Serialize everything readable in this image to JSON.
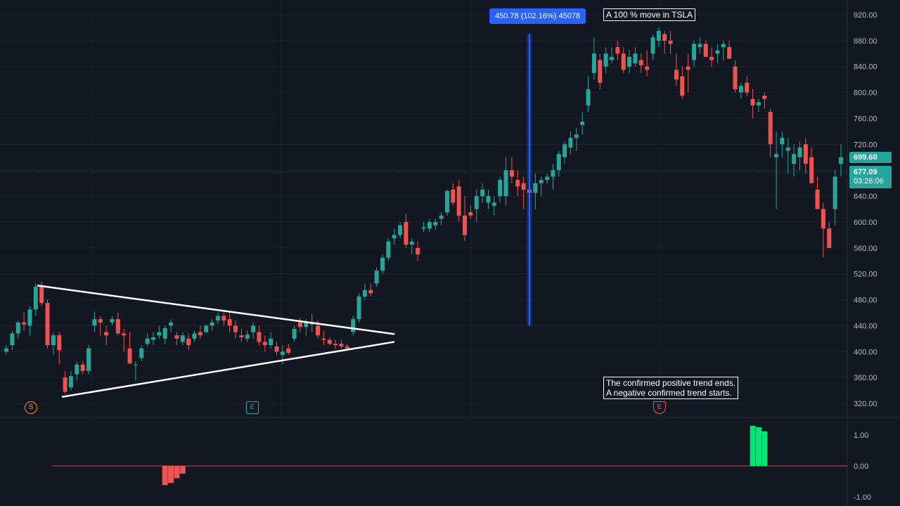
{
  "chart_data": [
    {
      "type": "candlestick",
      "title": "",
      "price_axis": {
        "ticks": [
          "920.00",
          "880.00",
          "840.00",
          "800.00",
          "760.00",
          "720.00",
          "680.00",
          "640.00",
          "600.00",
          "560.00",
          "520.00",
          "480.00",
          "440.00",
          "400.00",
          "360.00",
          "320.00"
        ],
        "ylim": [
          300,
          935
        ]
      },
      "ohlc": [
        [
          400,
          410,
          396,
          405
        ],
        [
          410,
          432,
          402,
          428
        ],
        [
          428,
          448,
          420,
          445
        ],
        [
          445,
          460,
          432,
          442
        ],
        [
          440,
          470,
          425,
          465
        ],
        [
          465,
          505,
          455,
          500
        ],
        [
          500,
          508,
          470,
          475
        ],
        [
          475,
          480,
          405,
          410
        ],
        [
          410,
          430,
          395,
          425
        ],
        [
          425,
          430,
          380,
          402
        ],
        [
          360,
          370,
          335,
          338
        ],
        [
          345,
          370,
          340,
          362
        ],
        [
          365,
          385,
          355,
          380
        ],
        [
          380,
          385,
          365,
          370
        ],
        [
          370,
          410,
          365,
          405
        ],
        [
          440,
          462,
          430,
          450
        ],
        [
          450,
          455,
          425,
          445
        ],
        [
          430,
          440,
          410,
          425
        ],
        [
          445,
          455,
          440,
          450
        ],
        [
          450,
          460,
          425,
          428
        ],
        [
          428,
          435,
          400,
          425
        ],
        [
          405,
          430,
          380,
          382
        ],
        [
          380,
          385,
          355,
          380
        ],
        [
          390,
          410,
          385,
          405
        ],
        [
          412,
          428,
          408,
          420
        ],
        [
          418,
          430,
          410,
          422
        ],
        [
          425,
          440,
          420,
          430
        ],
        [
          420,
          440,
          412,
          436
        ],
        [
          440,
          450,
          430,
          445
        ],
        [
          425,
          430,
          410,
          420
        ],
        [
          415,
          430,
          410,
          425
        ],
        [
          420,
          428,
          402,
          410
        ],
        [
          420,
          432,
          415,
          428
        ],
        [
          430,
          440,
          420,
          425
        ],
        [
          430,
          442,
          428,
          440
        ],
        [
          440,
          450,
          432,
          445
        ],
        [
          448,
          460,
          442,
          455
        ],
        [
          455,
          460,
          440,
          448
        ],
        [
          450,
          460,
          430,
          440
        ],
        [
          440,
          448,
          420,
          430
        ],
        [
          425,
          435,
          415,
          422
        ],
        [
          420,
          432,
          415,
          426
        ],
        [
          430,
          445,
          420,
          440
        ],
        [
          430,
          440,
          410,
          415
        ],
        [
          415,
          425,
          400,
          410
        ],
        [
          410,
          430,
          405,
          420
        ],
        [
          408,
          415,
          395,
          400
        ],
        [
          395,
          410,
          380,
          400
        ],
        [
          405,
          412,
          395,
          398
        ],
        [
          420,
          440,
          415,
          435
        ],
        [
          445,
          452,
          430,
          438
        ],
        [
          438,
          450,
          425,
          445
        ],
        [
          445,
          458,
          430,
          442
        ],
        [
          440,
          448,
          420,
          425
        ],
        [
          420,
          432,
          410,
          418
        ],
        [
          418,
          422,
          410,
          412
        ],
        [
          412,
          418,
          404,
          410
        ],
        [
          412,
          418,
          405,
          408
        ],
        [
          408,
          412,
          402,
          405
        ],
        [
          430,
          455,
          425,
          450
        ],
        [
          450,
          490,
          445,
          485
        ],
        [
          485,
          505,
          480,
          495
        ],
        [
          495,
          505,
          485,
          490
        ],
        [
          505,
          530,
          500,
          525
        ],
        [
          525,
          550,
          520,
          545
        ],
        [
          545,
          575,
          540,
          570
        ],
        [
          575,
          590,
          565,
          580
        ],
        [
          580,
          600,
          575,
          595
        ],
        [
          600,
          612,
          560,
          565
        ],
        [
          565,
          575,
          550,
          570
        ],
        [
          560,
          570,
          540,
          550
        ],
        [
          590,
          600,
          585,
          592
        ],
        [
          590,
          605,
          585,
          600
        ],
        [
          595,
          605,
          588,
          600
        ],
        [
          605,
          615,
          595,
          610
        ],
        [
          615,
          650,
          610,
          648
        ],
        [
          650,
          660,
          625,
          630
        ],
        [
          655,
          665,
          600,
          610
        ],
        [
          610,
          640,
          570,
          580
        ],
        [
          615,
          625,
          605,
          610
        ],
        [
          620,
          650,
          600,
          640
        ],
        [
          640,
          660,
          630,
          650
        ],
        [
          630,
          650,
          620,
          640
        ],
        [
          625,
          640,
          610,
          630
        ],
        [
          640,
          670,
          630,
          665
        ],
        [
          640,
          700,
          625,
          680
        ],
        [
          680,
          700,
          660,
          670
        ],
        [
          665,
          680,
          640,
          655
        ],
        [
          660,
          670,
          620,
          650
        ],
        [
          650,
          665,
          635,
          645
        ],
        [
          645,
          675,
          620,
          660
        ],
        [
          660,
          670,
          640,
          665
        ],
        [
          665,
          675,
          660,
          670
        ],
        [
          670,
          690,
          650,
          680
        ],
        [
          680,
          710,
          670,
          705
        ],
        [
          700,
          725,
          690,
          720
        ],
        [
          715,
          740,
          705,
          730
        ],
        [
          730,
          745,
          710,
          735
        ],
        [
          750,
          770,
          735,
          755
        ],
        [
          780,
          825,
          770,
          805
        ],
        [
          830,
          885,
          820,
          860
        ],
        [
          850,
          860,
          805,
          815
        ],
        [
          840,
          870,
          830,
          860
        ],
        [
          850,
          870,
          845,
          855
        ],
        [
          870,
          880,
          850,
          860
        ],
        [
          860,
          870,
          830,
          835
        ],
        [
          840,
          865,
          830,
          855
        ],
        [
          845,
          870,
          840,
          860
        ],
        [
          850,
          860,
          830,
          842
        ],
        [
          840,
          865,
          825,
          835
        ],
        [
          860,
          890,
          850,
          885
        ],
        [
          880,
          900,
          870,
          895
        ],
        [
          890,
          895,
          860,
          880
        ],
        [
          880,
          895,
          860,
          875
        ],
        [
          835,
          860,
          810,
          820
        ],
        [
          825,
          840,
          790,
          795
        ],
        [
          840,
          860,
          800,
          835
        ],
        [
          850,
          880,
          840,
          875
        ],
        [
          870,
          885,
          860,
          875
        ],
        [
          875,
          880,
          855,
          855
        ],
        [
          855,
          870,
          840,
          850
        ],
        [
          860,
          875,
          845,
          865
        ],
        [
          870,
          880,
          850,
          875
        ],
        [
          870,
          880,
          855,
          852
        ],
        [
          840,
          850,
          800,
          805
        ],
        [
          800,
          815,
          790,
          810
        ],
        [
          815,
          825,
          795,
          800
        ],
        [
          790,
          805,
          760,
          780
        ],
        [
          780,
          790,
          770,
          785
        ],
        [
          795,
          800,
          775,
          790
        ],
        [
          770,
          775,
          700,
          720
        ],
        [
          700,
          740,
          620,
          705
        ],
        [
          720,
          740,
          700,
          730
        ],
        [
          710,
          730,
          675,
          715
        ],
        [
          690,
          720,
          670,
          705
        ],
        [
          700,
          725,
          680,
          715
        ],
        [
          720,
          730,
          675,
          690
        ],
        [
          700,
          715,
          660,
          660
        ],
        [
          650,
          670,
          620,
          620
        ],
        [
          620,
          630,
          545,
          590
        ],
        [
          590,
          600,
          560,
          560
        ],
        [
          620,
          680,
          595,
          670
        ],
        [
          690,
          720,
          670,
          700
        ]
      ],
      "oscillator": {
        "ticks": [
          "1.00",
          "0.00",
          "-1.00"
        ],
        "ylim": [
          -1.2,
          1.6
        ],
        "series": [
          {
            "name": "",
            "color": "#ef5350",
            "start_index": 27,
            "values": [
              -0.62,
              -0.55,
              -0.4,
              -0.25
            ]
          },
          {
            "name": "",
            "color": "#00e676",
            "start_index": 127,
            "values": [
              1.3,
              1.25,
              1.12
            ]
          }
        ]
      }
    }
  ],
  "annotations": {
    "measure_label": "450.78 (102.16%) 45078",
    "note_top": "A 100 % move in TSLA",
    "note_bottom_line1": "The confirmed positive trend ends.",
    "note_bottom_line2": "A negative confirmed trend starts.",
    "marker_s": "S",
    "marker_e1": "E",
    "marker_e2": "E"
  },
  "price_tags": {
    "high_label": "699.60",
    "last_label": "677.09",
    "countdown": "03:26:06"
  },
  "colors": {
    "up": "#26a69a",
    "down": "#ef5350",
    "background": "#131722",
    "grid": "#1e222d",
    "measure": "#2962ff",
    "trendline": "#ffffff"
  }
}
